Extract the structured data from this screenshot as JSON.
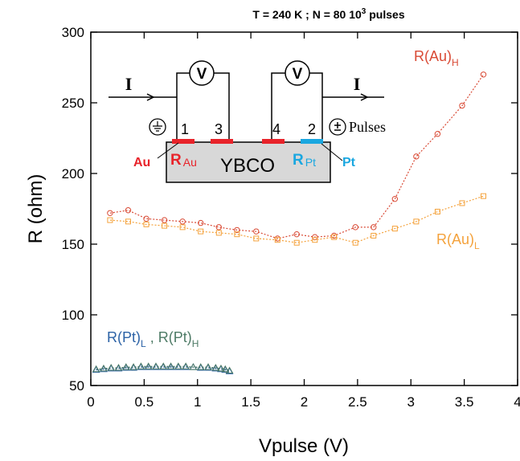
{
  "chart_data": {
    "type": "line",
    "title": "T = 240 K  ; N = 80 10",
    "title_sup": "3",
    "title_tail": " pulses",
    "xlabel": "Vpulse (V)",
    "ylabel": "R (ohm)",
    "xlim": [
      0,
      4
    ],
    "ylim": [
      50,
      300
    ],
    "xticks": [
      0,
      0.5,
      1,
      1.5,
      2,
      2.5,
      3,
      3.5,
      4
    ],
    "xtick_labels": [
      "0",
      "0.5",
      "1",
      "1.5",
      "2",
      "2.5",
      "3",
      "3.5",
      "4"
    ],
    "yticks": [
      50,
      100,
      150,
      200,
      250,
      300
    ],
    "ytick_labels": [
      "50",
      "100",
      "150",
      "200",
      "250",
      "300"
    ],
    "grid": false,
    "series": [
      {
        "name": "R(Au)H",
        "label_main": "R(Au)",
        "label_sub": "H",
        "color": "#d94a35",
        "marker": "circle",
        "x": [
          0.18,
          0.35,
          0.52,
          0.69,
          0.86,
          1.03,
          1.2,
          1.37,
          1.55,
          1.75,
          1.93,
          2.1,
          2.28,
          2.48,
          2.65,
          2.85,
          3.05,
          3.25,
          3.48,
          3.68
        ],
        "y": [
          172,
          174,
          168,
          167,
          166,
          165,
          162,
          160,
          159,
          154,
          157,
          155,
          156,
          162,
          162,
          182,
          212,
          228,
          248,
          270
        ]
      },
      {
        "name": "R(Au)L",
        "label_main": "R(Au)",
        "label_sub": "L",
        "color": "#f4a23c",
        "marker": "square",
        "x": [
          0.18,
          0.35,
          0.52,
          0.69,
          0.86,
          1.03,
          1.2,
          1.37,
          1.55,
          1.75,
          1.93,
          2.1,
          2.28,
          2.48,
          2.65,
          2.85,
          3.05,
          3.25,
          3.48,
          3.68
        ],
        "y": [
          167,
          166,
          164,
          163,
          162,
          159,
          158,
          157,
          154,
          153,
          151,
          153,
          155,
          151,
          156,
          161,
          166,
          173,
          179,
          184
        ]
      },
      {
        "name": "R(Pt)L",
        "label_main": "R(Pt)",
        "label_sub": "L",
        "color": "#2d63a6",
        "marker": "triangle",
        "x": [
          0.05,
          0.12,
          0.19,
          0.26,
          0.33,
          0.4,
          0.47,
          0.54,
          0.61,
          0.68,
          0.75,
          0.82,
          0.89,
          0.96,
          1.03,
          1.1,
          1.17,
          1.22,
          1.26,
          1.3
        ],
        "y": [
          61,
          61.5,
          62,
          62,
          62.5,
          62.5,
          63,
          63,
          63,
          63,
          63,
          63,
          63,
          63,
          62.5,
          62.5,
          62,
          61.5,
          61,
          60
        ]
      },
      {
        "name": "R(Pt)H",
        "label_main": "R(Pt)",
        "label_sub": "H",
        "color": "#4e7b66",
        "marker": "triangle",
        "x": [
          0.05,
          0.12,
          0.19,
          0.26,
          0.33,
          0.4,
          0.47,
          0.54,
          0.61,
          0.68,
          0.75,
          0.82,
          0.89,
          0.96,
          1.03,
          1.1,
          1.17,
          1.22,
          1.26,
          1.3
        ],
        "y": [
          61.5,
          62,
          62.5,
          62.5,
          63,
          63,
          63.5,
          63.5,
          63.5,
          63.5,
          63.5,
          63.5,
          63.5,
          63,
          63,
          63,
          62.5,
          62,
          61.5,
          60.5
        ]
      }
    ],
    "pt_label_separator": " , ",
    "inset": {
      "substrate_label": "YBCO",
      "current_label": "I",
      "voltmeter_label": "V",
      "contact_numbers": [
        "1",
        "3",
        "4",
        "2"
      ],
      "au_label": "Au",
      "pt_label": "Pt",
      "r_au_main": "R",
      "r_au_sub": "Au",
      "r_pt_main": "R",
      "r_pt_sub": "Pt",
      "pulses_label": "Pulses",
      "au_color": "#e8232a",
      "pt_color": "#1aa7e0",
      "substrate_color": "#d8d8d8"
    }
  }
}
